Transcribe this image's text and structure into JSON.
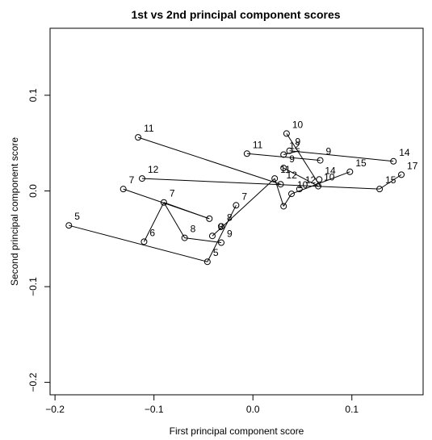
{
  "chart_data": {
    "type": "scatter",
    "title": "1st vs 2nd principal component scores",
    "xlabel": "First principal component score",
    "ylabel": "Second principal component score",
    "xlim": [
      -0.205,
      0.172
    ],
    "ylim": [
      -0.213,
      0.17
    ],
    "xticks": [
      -0.2,
      -0.1,
      0.0,
      0.1
    ],
    "xtick_labels": [
      "−0.2",
      "−0.1",
      "0.0",
      "0.1"
    ],
    "yticks": [
      -0.2,
      -0.1,
      0.0,
      0.1
    ],
    "ytick_labels": [
      "−0.2",
      "−0.1",
      "0.0",
      "0.1"
    ],
    "grid": false,
    "legend": "none",
    "points": [
      {
        "x": -0.186,
        "y": -0.036,
        "label": "5"
      },
      {
        "x": -0.046,
        "y": -0.074,
        "label": "5"
      },
      {
        "x": -0.11,
        "y": -0.053,
        "label": "6"
      },
      {
        "x": -0.09,
        "y": -0.012,
        "label": "7"
      },
      {
        "x": -0.131,
        "y": 0.002,
        "label": "7"
      },
      {
        "x": -0.017,
        "y": -0.015,
        "label": "7"
      },
      {
        "x": -0.069,
        "y": -0.049,
        "label": "8"
      },
      {
        "x": -0.041,
        "y": -0.047,
        "label": "8"
      },
      {
        "x": -0.032,
        "y": -0.037,
        "label": "8"
      },
      {
        "x": -0.032,
        "y": -0.054,
        "label": "9"
      },
      {
        "x": 0.037,
        "y": 0.042,
        "label": "9"
      },
      {
        "x": 0.031,
        "y": 0.024,
        "label": "9"
      },
      {
        "x": 0.068,
        "y": 0.032,
        "label": "9"
      },
      {
        "x": 0.034,
        "y": 0.06,
        "label": "10"
      },
      {
        "x": 0.039,
        "y": -0.003,
        "label": "10"
      },
      {
        "x": 0.066,
        "y": 0.005,
        "label": "10"
      },
      {
        "x": -0.116,
        "y": 0.056,
        "label": "11"
      },
      {
        "x": -0.006,
        "y": 0.039,
        "label": "11"
      },
      {
        "x": 0.022,
        "y": 0.013,
        "label": "11"
      },
      {
        "x": -0.112,
        "y": 0.013,
        "label": "12"
      },
      {
        "x": 0.031,
        "y": 0.038,
        "label": "12"
      },
      {
        "x": 0.047,
        "y": 0.002,
        "label": "12"
      },
      {
        "x": 0.028,
        "y": 0.007,
        "label": "12"
      },
      {
        "x": 0.067,
        "y": 0.012,
        "label": "14"
      },
      {
        "x": 0.142,
        "y": 0.031,
        "label": "14"
      },
      {
        "x": 0.098,
        "y": 0.02,
        "label": "15"
      },
      {
        "x": 0.128,
        "y": 0.002,
        "label": "15"
      },
      {
        "x": 0.15,
        "y": 0.017,
        "label": "17"
      },
      {
        "x": -0.044,
        "y": -0.029,
        "label": ""
      },
      {
        "x": 0.031,
        "y": -0.016,
        "label": ""
      }
    ],
    "segments": [
      [
        [
          -0.186,
          -0.036
        ],
        [
          -0.046,
          -0.074
        ]
      ],
      [
        [
          -0.046,
          -0.074
        ],
        [
          -0.017,
          -0.015
        ]
      ],
      [
        [
          -0.11,
          -0.053
        ],
        [
          -0.09,
          -0.012
        ]
      ],
      [
        [
          -0.09,
          -0.012
        ],
        [
          -0.069,
          -0.049
        ]
      ],
      [
        [
          -0.069,
          -0.049
        ],
        [
          -0.032,
          -0.054
        ]
      ],
      [
        [
          -0.131,
          0.002
        ],
        [
          -0.044,
          -0.029
        ]
      ],
      [
        [
          -0.044,
          -0.029
        ],
        [
          -0.09,
          -0.012
        ]
      ],
      [
        [
          -0.116,
          0.056
        ],
        [
          0.028,
          0.007
        ]
      ],
      [
        [
          -0.112,
          0.013
        ],
        [
          0.128,
          0.002
        ]
      ],
      [
        [
          0.128,
          0.002
        ],
        [
          0.15,
          0.017
        ]
      ],
      [
        [
          -0.041,
          -0.047
        ],
        [
          0.022,
          0.013
        ]
      ],
      [
        [
          0.022,
          0.013
        ],
        [
          0.031,
          -0.016
        ]
      ],
      [
        [
          0.031,
          -0.016
        ],
        [
          0.039,
          -0.003
        ]
      ],
      [
        [
          0.039,
          -0.003
        ],
        [
          0.098,
          0.02
        ]
      ],
      [
        [
          -0.006,
          0.039
        ],
        [
          0.068,
          0.032
        ]
      ],
      [
        [
          0.034,
          0.06
        ],
        [
          0.068,
          0.005
        ]
      ],
      [
        [
          0.037,
          0.042
        ],
        [
          0.142,
          0.031
        ]
      ],
      [
        [
          0.031,
          0.024
        ],
        [
          0.066,
          0.005
        ]
      ],
      [
        [
          0.031,
          0.038
        ],
        [
          0.047,
          0.042
        ]
      ]
    ]
  }
}
